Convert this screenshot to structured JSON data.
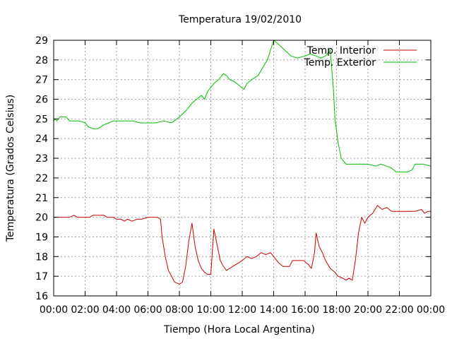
{
  "chart_data": {
    "type": "line",
    "title": "Temperatura 19/02/2010",
    "xlabel": "Tiempo (Hora Local Argentina)",
    "ylabel": "Temperatura (Grados Celsius)",
    "xlim": [
      0,
      24
    ],
    "ylim": [
      16,
      29
    ],
    "grid": true,
    "legend_position": "top-right",
    "x_ticks": [
      "00:00",
      "02:00",
      "04:00",
      "06:00",
      "08:00",
      "10:00",
      "12:00",
      "14:00",
      "16:00",
      "18:00",
      "20:00",
      "22:00",
      "00:00"
    ],
    "y_ticks": [
      16,
      17,
      18,
      19,
      20,
      21,
      22,
      23,
      24,
      25,
      26,
      27,
      28,
      29
    ],
    "series": [
      {
        "name": "Temp. Interior",
        "color": "#cc0000",
        "points": [
          [
            0.0,
            20.0
          ],
          [
            1.0,
            20.0
          ],
          [
            1.3,
            20.1
          ],
          [
            1.5,
            20.0
          ],
          [
            2.3,
            20.0
          ],
          [
            2.5,
            20.1
          ],
          [
            3.2,
            20.1
          ],
          [
            3.4,
            20.0
          ],
          [
            3.8,
            20.0
          ],
          [
            4.0,
            19.9
          ],
          [
            4.3,
            19.9
          ],
          [
            4.5,
            19.8
          ],
          [
            4.7,
            19.9
          ],
          [
            5.0,
            19.8
          ],
          [
            5.3,
            19.9
          ],
          [
            5.6,
            19.9
          ],
          [
            6.0,
            20.0
          ],
          [
            6.6,
            20.0
          ],
          [
            6.8,
            19.9
          ],
          [
            6.9,
            19.0
          ],
          [
            7.1,
            18.0
          ],
          [
            7.3,
            17.3
          ],
          [
            7.5,
            17.0
          ],
          [
            7.7,
            16.7
          ],
          [
            8.0,
            16.6
          ],
          [
            8.2,
            16.7
          ],
          [
            8.4,
            17.5
          ],
          [
            8.6,
            18.8
          ],
          [
            8.8,
            19.7
          ],
          [
            9.0,
            18.5
          ],
          [
            9.2,
            17.8
          ],
          [
            9.4,
            17.4
          ],
          [
            9.6,
            17.2
          ],
          [
            9.8,
            17.1
          ],
          [
            10.0,
            17.1
          ],
          [
            10.2,
            19.4
          ],
          [
            10.4,
            18.6
          ],
          [
            10.6,
            17.8
          ],
          [
            10.8,
            17.5
          ],
          [
            11.0,
            17.3
          ],
          [
            11.2,
            17.4
          ],
          [
            11.4,
            17.5
          ],
          [
            11.6,
            17.6
          ],
          [
            11.8,
            17.7
          ],
          [
            12.0,
            17.8
          ],
          [
            12.3,
            18.0
          ],
          [
            12.6,
            17.9
          ],
          [
            12.9,
            18.0
          ],
          [
            13.2,
            18.2
          ],
          [
            13.5,
            18.1
          ],
          [
            13.8,
            18.2
          ],
          [
            14.0,
            18.0
          ],
          [
            14.3,
            17.7
          ],
          [
            14.6,
            17.5
          ],
          [
            15.0,
            17.5
          ],
          [
            15.2,
            17.8
          ],
          [
            15.6,
            17.8
          ],
          [
            15.9,
            17.8
          ],
          [
            16.2,
            17.6
          ],
          [
            16.4,
            17.4
          ],
          [
            16.6,
            18.2
          ],
          [
            16.7,
            19.2
          ],
          [
            16.9,
            18.5
          ],
          [
            17.1,
            18.2
          ],
          [
            17.3,
            17.8
          ],
          [
            17.6,
            17.4
          ],
          [
            17.9,
            17.2
          ],
          [
            18.1,
            17.0
          ],
          [
            18.4,
            16.9
          ],
          [
            18.6,
            16.8
          ],
          [
            18.8,
            16.9
          ],
          [
            19.0,
            16.8
          ],
          [
            19.2,
            17.8
          ],
          [
            19.4,
            19.2
          ],
          [
            19.6,
            20.0
          ],
          [
            19.8,
            19.7
          ],
          [
            20.0,
            20.0
          ],
          [
            20.3,
            20.2
          ],
          [
            20.6,
            20.6
          ],
          [
            20.9,
            20.4
          ],
          [
            21.2,
            20.5
          ],
          [
            21.5,
            20.3
          ],
          [
            22.0,
            20.3
          ],
          [
            23.0,
            20.3
          ],
          [
            23.4,
            20.4
          ],
          [
            23.6,
            20.2
          ],
          [
            23.8,
            20.3
          ],
          [
            24.0,
            20.3
          ]
        ]
      },
      {
        "name": "Temp. Exterior",
        "color": "#00bb00",
        "points": [
          [
            0.0,
            24.9
          ],
          [
            0.1,
            25.0
          ],
          [
            0.2,
            24.9
          ],
          [
            0.4,
            25.1
          ],
          [
            0.8,
            25.1
          ],
          [
            1.0,
            24.9
          ],
          [
            1.6,
            24.9
          ],
          [
            2.0,
            24.8
          ],
          [
            2.2,
            24.6
          ],
          [
            2.5,
            24.5
          ],
          [
            2.8,
            24.5
          ],
          [
            3.2,
            24.7
          ],
          [
            3.5,
            24.8
          ],
          [
            3.8,
            24.9
          ],
          [
            4.5,
            24.9
          ],
          [
            5.0,
            24.9
          ],
          [
            5.5,
            24.8
          ],
          [
            6.0,
            24.8
          ],
          [
            6.5,
            24.8
          ],
          [
            7.0,
            24.9
          ],
          [
            7.5,
            24.8
          ],
          [
            8.0,
            25.1
          ],
          [
            8.4,
            25.4
          ],
          [
            8.8,
            25.8
          ],
          [
            9.1,
            26.0
          ],
          [
            9.4,
            26.2
          ],
          [
            9.6,
            26.0
          ],
          [
            9.8,
            26.4
          ],
          [
            10.0,
            26.6
          ],
          [
            10.2,
            26.8
          ],
          [
            10.5,
            27.0
          ],
          [
            10.8,
            27.3
          ],
          [
            11.0,
            27.2
          ],
          [
            11.2,
            27.0
          ],
          [
            11.5,
            26.9
          ],
          [
            11.8,
            26.7
          ],
          [
            12.1,
            26.5
          ],
          [
            12.3,
            26.8
          ],
          [
            12.6,
            27.0
          ],
          [
            13.0,
            27.2
          ],
          [
            13.3,
            27.6
          ],
          [
            13.6,
            28.0
          ],
          [
            13.8,
            28.5
          ],
          [
            14.0,
            29.0
          ],
          [
            14.3,
            28.8
          ],
          [
            14.7,
            28.5
          ],
          [
            15.1,
            28.2
          ],
          [
            15.5,
            28.1
          ],
          [
            16.0,
            28.2
          ],
          [
            16.3,
            28.3
          ],
          [
            16.7,
            28.2
          ],
          [
            17.0,
            28.1
          ],
          [
            17.3,
            28.2
          ],
          [
            17.6,
            28.5
          ],
          [
            17.8,
            26.5
          ],
          [
            17.9,
            25.0
          ],
          [
            18.1,
            23.8
          ],
          [
            18.3,
            23.0
          ],
          [
            18.6,
            22.7
          ],
          [
            19.0,
            22.7
          ],
          [
            19.5,
            22.7
          ],
          [
            20.0,
            22.7
          ],
          [
            20.5,
            22.6
          ],
          [
            20.8,
            22.7
          ],
          [
            21.2,
            22.6
          ],
          [
            21.5,
            22.5
          ],
          [
            21.8,
            22.3
          ],
          [
            22.2,
            22.3
          ],
          [
            22.5,
            22.3
          ],
          [
            22.8,
            22.4
          ],
          [
            23.0,
            22.7
          ],
          [
            23.5,
            22.7
          ],
          [
            24.0,
            22.6
          ]
        ]
      }
    ]
  }
}
